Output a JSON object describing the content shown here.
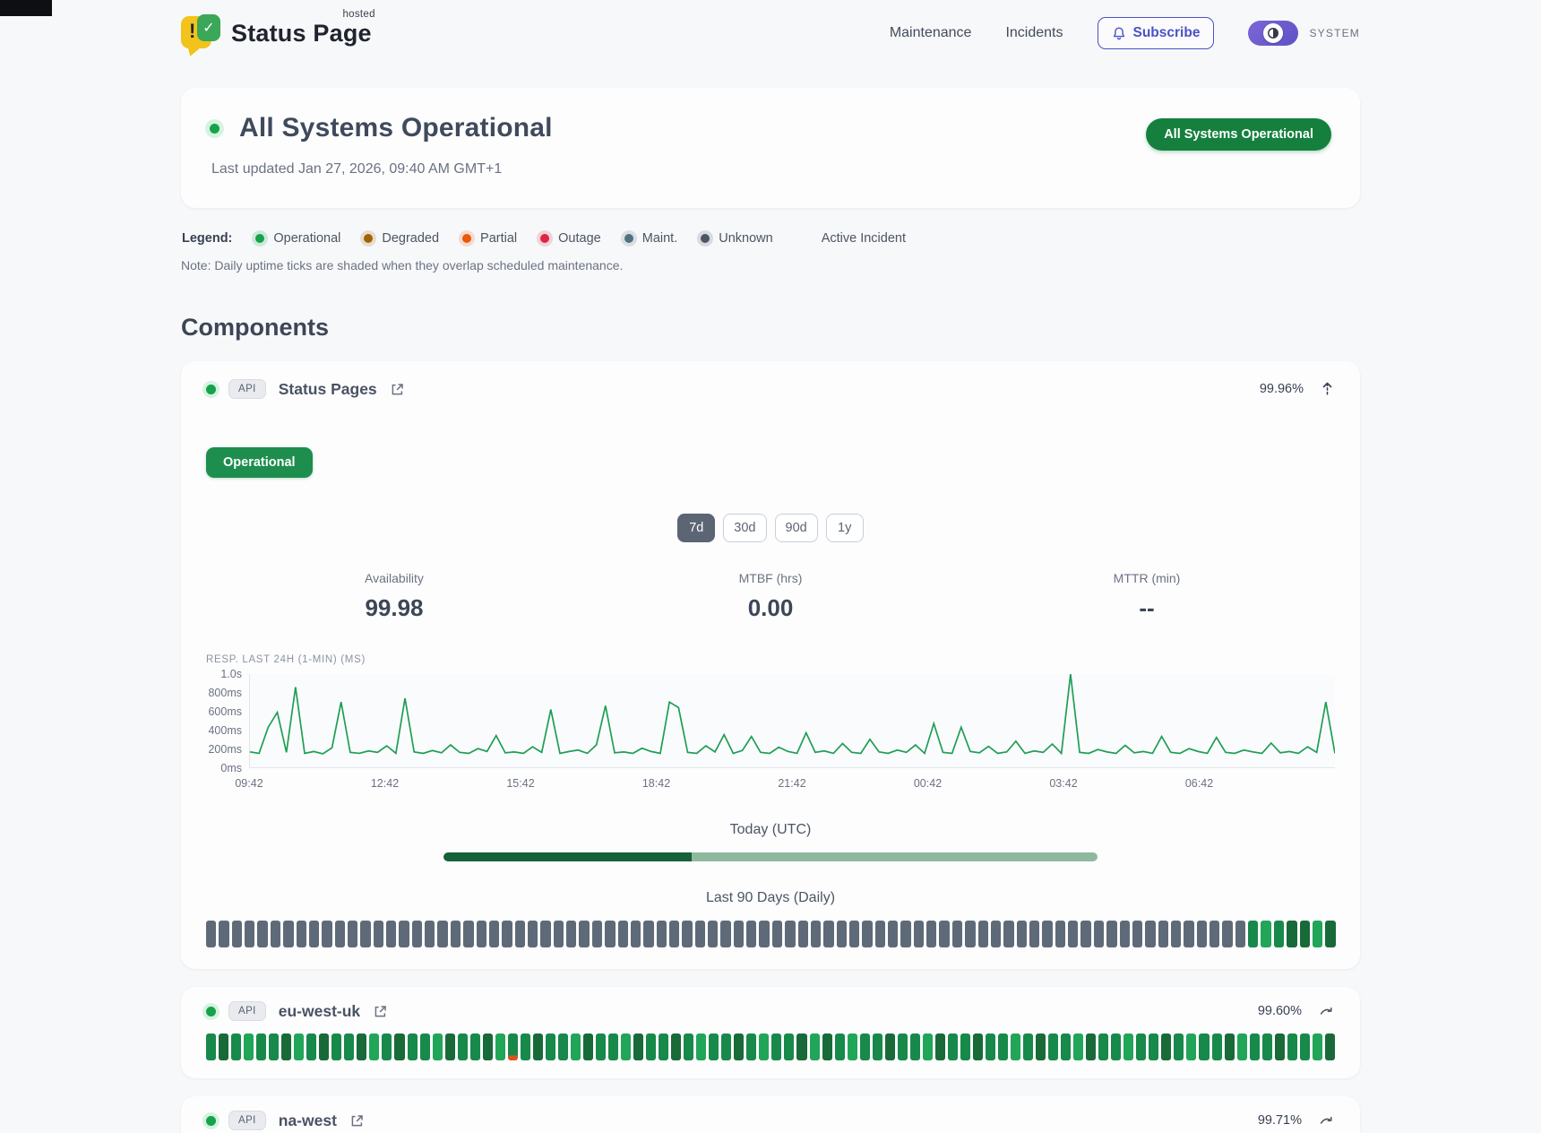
{
  "accent": {
    "green": "#16a34a",
    "dark_green": "#15803d",
    "indigo": "#4a52c4"
  },
  "header": {
    "logo": {
      "title": "Status Page",
      "superscript": "hosted"
    },
    "nav": [
      {
        "label": "Maintenance"
      },
      {
        "label": "Incidents"
      }
    ],
    "subscribe_label": "Subscribe",
    "theme_label": "SYSTEM"
  },
  "hero": {
    "title": "All Systems Operational",
    "last_updated": "Last updated Jan 27, 2026, 09:40 AM GMT+1",
    "status_badge": "All Systems Operational"
  },
  "legend": {
    "label": "Legend:",
    "items": [
      {
        "label": "Operational",
        "color": "#16a34a"
      },
      {
        "label": "Degraded",
        "color": "#a16207"
      },
      {
        "label": "Partial",
        "color": "#ea580c"
      },
      {
        "label": "Outage",
        "color": "#dc2645"
      },
      {
        "label": "Maint.",
        "color": "#53707f"
      },
      {
        "label": "Unknown",
        "color": "#4b5563"
      }
    ],
    "active_incident_label": "Active Incident",
    "note": "Note: Daily uptime ticks are shaded when they overlap scheduled maintenance."
  },
  "components": {
    "heading": "Components",
    "expanded": {
      "tag": "API",
      "name": "Status Pages",
      "uptime": "99.96%",
      "status_label": "Operational",
      "ranges": [
        "7d",
        "30d",
        "90d",
        "1y"
      ],
      "active_range": "7d",
      "stats": [
        {
          "label": "Availability",
          "value": "99.98"
        },
        {
          "label": "MTBF (hrs)",
          "value": "0.00"
        },
        {
          "label": "MTTR (min)",
          "value": "--"
        }
      ],
      "today_label": "Today (UTC)",
      "today_progress_pct": 38,
      "history_label": "Last 90 Days (Daily)",
      "ticks": "uuuuuuuuuuuuuuuuuuuuuuuuuuuuuuuuuuuuuuuuuuuuuuuuuuuuuuuuuuuuuuuuuuuuuuuuuuuuuuuuumlmddld"
    },
    "collapsed": [
      {
        "tag": "API",
        "name": "eu-west-uk",
        "uptime": "99.60%",
        "ticks": "mdmlmmdlmdmmdlmdmmldmmdlpmdmmldmmldmmdmlmmdmlmmdldmlmmdmmldmmdmmlmdmmldmmlmmdmlmmdlmmdmmld"
      },
      {
        "tag": "API",
        "name": "na-west",
        "uptime": "99.71%",
        "ticks": "mmdlmmdmldmdmmldmmdmlmmdmmldmmpmdlmmdmmlmdmmlmmdlmmmdlmdmmlddmmlmmdmlmmdmmldmmdlmmdmlmmdmm"
      }
    ]
  },
  "chart_data": {
    "type": "line",
    "title": "RESP. LAST 24H (1-MIN) (MS)",
    "x_tick_labels": [
      "09:42",
      "12:42",
      "15:42",
      "18:42",
      "21:42",
      "00:42",
      "03:42",
      "06:42"
    ],
    "y_tick_labels": [
      "1.0s",
      "800ms",
      "600ms",
      "400ms",
      "200ms",
      "0ms"
    ],
    "ylim": [
      0,
      1000
    ],
    "grid": false,
    "line_color": "#1e9e55",
    "values_ms": [
      165,
      150,
      430,
      590,
      160,
      860,
      150,
      170,
      145,
      210,
      700,
      160,
      150,
      175,
      160,
      230,
      150,
      740,
      165,
      150,
      180,
      155,
      240,
      160,
      150,
      200,
      170,
      340,
      155,
      165,
      150,
      220,
      160,
      620,
      150,
      170,
      185,
      150,
      240,
      660,
      155,
      165,
      150,
      205,
      170,
      150,
      700,
      640,
      160,
      150,
      230,
      165,
      350,
      150,
      180,
      330,
      160,
      150,
      215,
      170,
      150,
      370,
      160,
      175,
      150,
      255,
      160,
      150,
      300,
      165,
      150,
      185,
      160,
      240,
      150,
      470,
      160,
      150,
      430,
      170,
      155,
      225,
      150,
      165,
      280,
      150,
      175,
      160,
      250,
      150,
      1000,
      160,
      150,
      190,
      165,
      150,
      235,
      155,
      170,
      150,
      330,
      160,
      150,
      200,
      170,
      150,
      320,
      160,
      150,
      185,
      165,
      150,
      260,
      155,
      170,
      150,
      220,
      160,
      700,
      150
    ]
  }
}
